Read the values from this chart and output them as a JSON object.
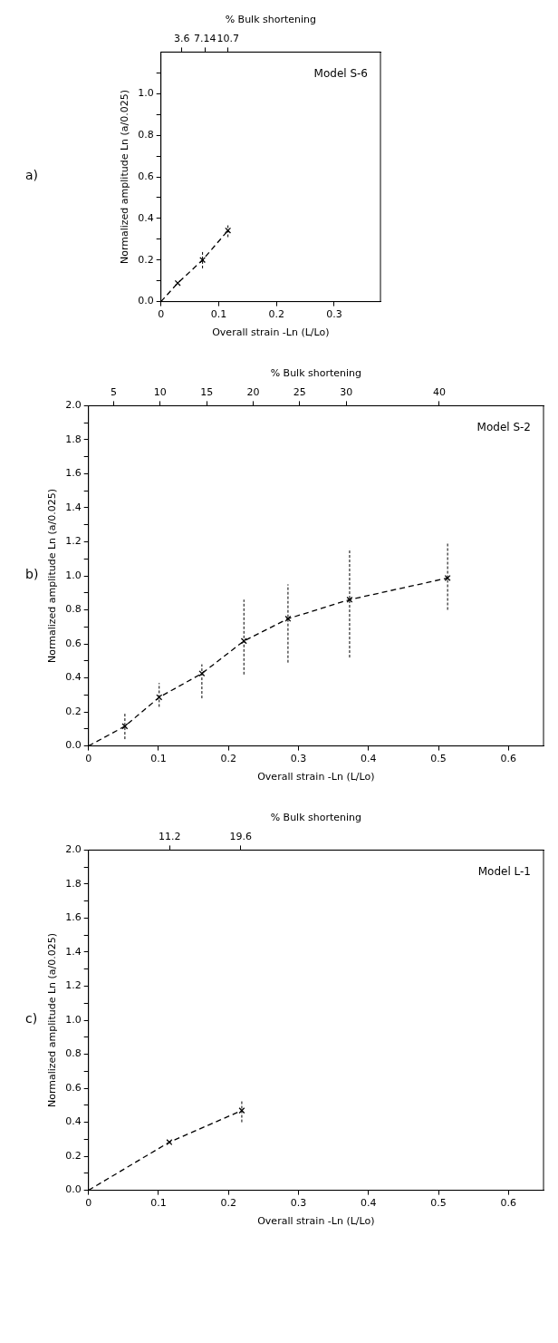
{
  "chart_data": [
    {
      "type": "scatter",
      "xlabel": "Overall strain -Ln (L/Lo)",
      "ylabel": "Normalized amplitude Ln (a/0.025)",
      "x2label": "% Bulk shortening",
      "annotations": [
        "a)",
        "Model S-6"
      ],
      "marker": "cross",
      "grid": false,
      "xlim": [
        0,
        0.38
      ],
      "xticks": [
        0,
        0.1,
        0.2,
        0.3
      ],
      "ylim": [
        0,
        1.2
      ],
      "yticks": [
        {
          "value": 0,
          "label": "0.0"
        },
        {
          "value": 0.1,
          "label": null
        },
        0.2,
        {
          "value": 0.3,
          "label": null
        },
        0.4,
        {
          "value": 0.5,
          "label": null
        },
        0.6,
        {
          "value": 0.7,
          "label": null
        },
        0.8,
        {
          "value": 0.9,
          "label": null
        },
        {
          "value": 1,
          "label": "1.0"
        },
        {
          "value": 1.1,
          "label": null
        }
      ],
      "x2lim": [
        0.4,
        34.1
      ],
      "x2ticks": [
        3.6,
        7.14,
        10.7
      ],
      "series": [
        {
          "type": "line",
          "color": "#000000",
          "marker": "none",
          "line_style": "dashed",
          "x": [
            0,
            0.029,
            0.072,
            0.116
          ],
          "values": [
            0,
            0.089,
            0.2,
            0.342
          ]
        },
        {
          "color": "#000000",
          "x": [
            0.029,
            0.072,
            0.116
          ],
          "values": [
            0.089,
            0.2,
            0.342
          ],
          "errors": [
            null,
            [
              0.16,
              0.24
            ],
            [
              0.31,
              0.37
            ]
          ]
        }
      ]
    },
    {
      "type": "scatter",
      "xlabel": "Overall strain -Ln (L/Lo)",
      "ylabel": "Normalized amplitude Ln (a/0.025)",
      "x2label": "% Bulk shortening",
      "annotations": [
        "b)",
        "Model S-2"
      ],
      "marker": "cross",
      "grid": false,
      "xlim": [
        0,
        0.65
      ],
      "xticks": [
        0,
        0.1,
        0.2,
        0.3,
        0.4,
        0.5,
        0.6
      ],
      "ylim": [
        0,
        2
      ],
      "yticks": [
        {
          "value": 0,
          "label": "0.0"
        },
        {
          "value": 0.1,
          "label": null
        },
        0.2,
        {
          "value": 0.3,
          "label": null
        },
        0.4,
        {
          "value": 0.5,
          "label": null
        },
        0.6,
        {
          "value": 0.7,
          "label": null
        },
        0.8,
        {
          "value": 0.9,
          "label": null
        },
        {
          "value": 1,
          "label": "1.0"
        },
        {
          "value": 1.1,
          "label": null
        },
        1.2,
        {
          "value": 1.3,
          "label": null
        },
        1.4,
        {
          "value": 1.5,
          "label": null
        },
        1.6,
        {
          "value": 1.7,
          "label": null
        },
        1.8,
        {
          "value": 1.9,
          "label": null
        },
        {
          "value": 2,
          "label": "2.0"
        }
      ],
      "x2lim": [
        2.3,
        51.2
      ],
      "x2ticks": [
        5,
        10,
        15,
        20,
        25,
        30,
        40
      ],
      "series": [
        {
          "type": "line",
          "color": "#000000",
          "marker": "none",
          "line_style": "dashed",
          "x": [
            0,
            0.052,
            0.101,
            0.162,
            0.222,
            0.285,
            0.373,
            0.513
          ],
          "values": [
            0,
            0.116,
            0.286,
            0.426,
            0.617,
            0.748,
            0.86,
            0.987
          ]
        },
        {
          "color": "#000000",
          "x": [
            0.052,
            0.101,
            0.162,
            0.222,
            0.285,
            0.373,
            0.513
          ],
          "values": [
            0.116,
            0.286,
            0.426,
            0.617,
            0.748,
            0.86,
            0.987
          ],
          "errors": [
            [
              0.04,
              0.19
            ],
            [
              0.23,
              0.37
            ],
            [
              0.28,
              0.48
            ],
            [
              0.42,
              0.86
            ],
            [
              0.49,
              0.95
            ],
            [
              0.52,
              1.16
            ],
            [
              0.8,
              1.2
            ]
          ]
        }
      ]
    },
    {
      "type": "scatter",
      "xlabel": "Overall strain -Ln (L/Lo)",
      "ylabel": "Normalized amplitude Ln (a/0.025)",
      "x2label": "% Bulk shortening",
      "annotations": [
        "c)",
        "Model L-1"
      ],
      "marker": "cross",
      "grid": false,
      "xlim": [
        0,
        0.65
      ],
      "xticks": [
        0,
        0.1,
        0.2,
        0.3,
        0.4,
        0.5,
        0.6
      ],
      "ylim": [
        0,
        2
      ],
      "yticks": [
        {
          "value": 0,
          "label": "0.0"
        },
        {
          "value": 0.1,
          "label": null
        },
        0.2,
        {
          "value": 0.3,
          "label": null
        },
        0.4,
        {
          "value": 0.5,
          "label": null
        },
        0.6,
        {
          "value": 0.7,
          "label": null
        },
        0.8,
        {
          "value": 0.9,
          "label": null
        },
        {
          "value": 1,
          "label": "1.0"
        },
        {
          "value": 1.1,
          "label": null
        },
        1.2,
        {
          "value": 1.3,
          "label": null
        },
        1.4,
        {
          "value": 1.5,
          "label": null
        },
        1.6,
        {
          "value": 1.7,
          "label": null
        },
        1.8,
        {
          "value": 1.9,
          "label": null
        },
        {
          "value": 2,
          "label": "2.0"
        }
      ],
      "x2lim": [
        1.6,
        55.4
      ],
      "x2ticks": [
        11.2,
        19.6
      ],
      "series": [
        {
          "type": "line",
          "color": "#000000",
          "marker": "none",
          "line_style": "dashed",
          "x": [
            0,
            0.1155,
            0.219
          ],
          "values": [
            0,
            0.283,
            0.469
          ]
        },
        {
          "color": "#000000",
          "x": [
            0.1155,
            0.219
          ],
          "values": [
            0.283,
            0.469
          ],
          "errors": [
            null,
            [
              0.4,
              0.53
            ]
          ]
        }
      ]
    }
  ]
}
